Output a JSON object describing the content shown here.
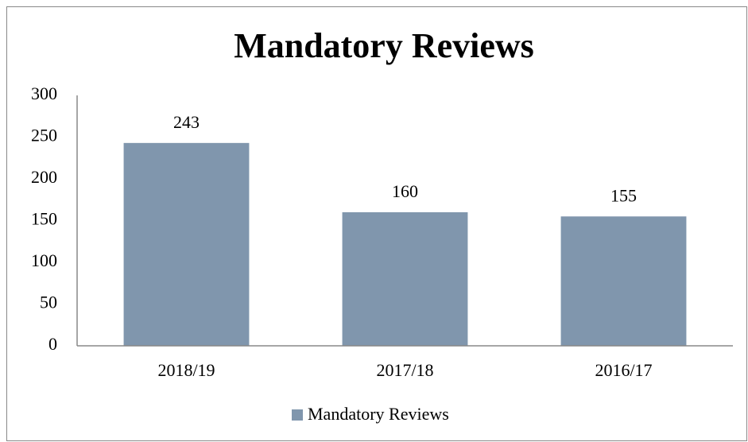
{
  "chart_data": {
    "type": "bar",
    "title": "Mandatory Reviews",
    "categories": [
      "2018/19",
      "2017/18",
      "2016/17"
    ],
    "series": [
      {
        "name": "Mandatory Reviews",
        "color": "#8096ad",
        "values": [
          243,
          160,
          155
        ]
      }
    ],
    "ylim": [
      0,
      300
    ],
    "yticks": [
      0,
      50,
      100,
      150,
      200,
      250,
      300
    ],
    "grid": false,
    "legend": "bottom"
  }
}
